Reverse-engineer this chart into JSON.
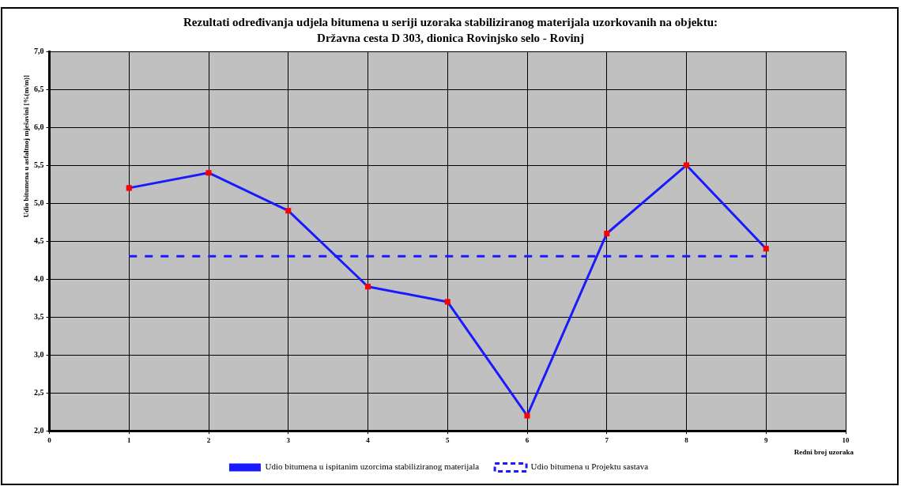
{
  "chart_data": {
    "type": "line",
    "title": "Rezultati određivanja udjela bitumena u seriji uzoraka stabiliziranog materijala uzorkovanih na objektu:\nDržavna cesta D 303, dionica Rovinjsko selo - Rovinj",
    "xlabel": "Redni broj uzoraka",
    "ylabel": "Udio bitumena u asfaltnoj mješavini [%(m/m)]",
    "x": [
      1,
      2,
      3,
      4,
      5,
      6,
      7,
      8,
      9
    ],
    "series": [
      {
        "name": "Udio bitumena u ispitanim uzorcima stabiliziranog materijala",
        "color": "#1a1aff",
        "colors": [
          "#ff0000",
          "#ff0000",
          "#ff0000",
          "#ff0000",
          "#ff0000",
          "#ff0000",
          "#ff0000",
          "#ff0000",
          "#ff0000"
        ],
        "values": [
          5.2,
          5.4,
          4.9,
          3.9,
          3.7,
          2.2,
          4.6,
          5.5,
          4.4
        ],
        "marker": "square",
        "line_style": "solid"
      },
      {
        "name": "Udio bitumena u Projektu sastava",
        "color": "#1a1aff",
        "values": [
          4.3,
          4.3,
          4.3,
          4.3,
          4.3,
          4.3,
          4.3,
          4.3,
          4.3
        ],
        "marker": "none",
        "line_style": "dashed"
      }
    ],
    "xlim": [
      0,
      10
    ],
    "xticks": [
      0,
      1,
      2,
      3,
      4,
      5,
      6,
      7,
      8,
      9,
      10
    ],
    "ylim": [
      2,
      7
    ],
    "yticks": [
      {
        "value": 2,
        "label": "2,0"
      },
      {
        "value": 2.5,
        "label": "2,5"
      },
      {
        "value": 3,
        "label": "3,0"
      },
      {
        "value": 3.5,
        "label": "3,5"
      },
      {
        "value": 4,
        "label": "4,0"
      },
      {
        "value": 4.5,
        "label": "4,5"
      },
      {
        "value": 5,
        "label": "5,0"
      },
      {
        "value": 5.5,
        "label": "5,5"
      },
      {
        "value": 6,
        "label": "6,0"
      },
      {
        "value": 6.5,
        "label": "6,5"
      },
      {
        "value": 7,
        "label": "7,0"
      }
    ],
    "grid": true,
    "legend": "bottom"
  }
}
